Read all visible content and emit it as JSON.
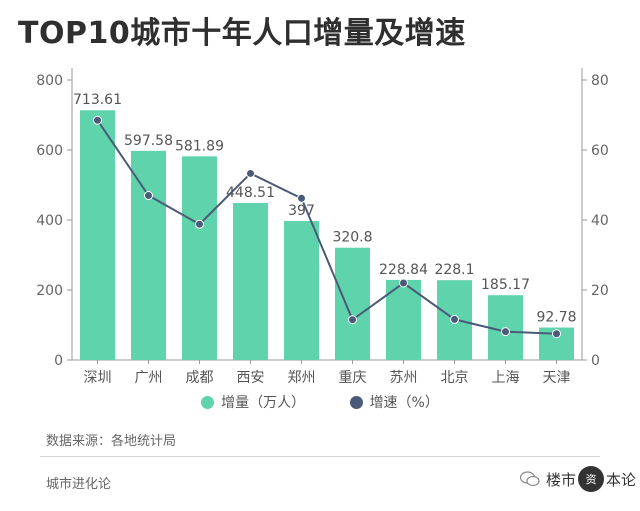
{
  "title": "TOP10城市十年人口增量及增速",
  "chart_data": {
    "type": "bar+line",
    "categories": [
      "深圳",
      "广州",
      "成都",
      "西安",
      "郑州",
      "重庆",
      "苏州",
      "北京",
      "上海",
      "天津"
    ],
    "series": [
      {
        "name": "增量（万人）",
        "type": "bar",
        "axis": "left",
        "values": [
          713.61,
          597.58,
          581.89,
          448.51,
          397,
          320.8,
          228.84,
          228.1,
          185.17,
          92.78
        ],
        "labels": [
          "713.61",
          "597.58",
          "581.89",
          "448.51",
          "397",
          "320.8",
          "228.84",
          "228.1",
          "185.17",
          "92.78"
        ]
      },
      {
        "name": "增速（%）",
        "type": "line",
        "axis": "right",
        "values": [
          68.5,
          47.0,
          38.8,
          53.3,
          46.2,
          11.5,
          22.0,
          11.6,
          8.1,
          7.5
        ]
      }
    ],
    "left_axis": {
      "ylim": [
        0,
        800
      ],
      "ticks": [
        "0",
        "200",
        "400",
        "600",
        "800"
      ]
    },
    "right_axis": {
      "ylim": [
        0,
        80
      ],
      "ticks": [
        "0",
        "20",
        "40",
        "60",
        "80"
      ]
    }
  },
  "legend": {
    "bar_label": "增量（万人）",
    "line_label": "增速（%）"
  },
  "source": "数据来源：各地统计局",
  "footer_left": "城市进化论",
  "brand": {
    "text_before": "楼市",
    "seal_text": "资",
    "text_after": "本论"
  },
  "colors": {
    "bar": "#5fd3ab",
    "line": "#4a5a78",
    "axis": "#999999"
  }
}
